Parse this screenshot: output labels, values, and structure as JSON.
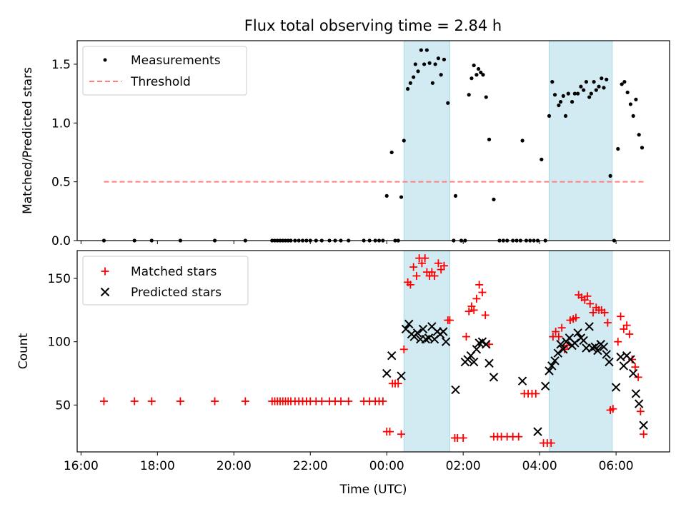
{
  "title": "Flux total observing time = 2.84 h",
  "colors": {
    "measurements": "#000000",
    "threshold": "#ff7f7f",
    "matched": "#ff0000",
    "predicted": "#000000",
    "shade": "#add8e6"
  },
  "chart_data": [
    {
      "type": "scatter",
      "panel": "top",
      "ylabel": "Matched/Predicted stars",
      "xlabel": "",
      "x_unit": "hours relative to 00:00 UTC",
      "xlim": [
        -8.1,
        7.4
      ],
      "ylim": [
        0,
        1.7
      ],
      "yticks": [
        {
          "v": 0,
          "label": "0.0"
        },
        {
          "v": 0.5,
          "label": "0.5"
        },
        {
          "v": 1.0,
          "label": "1.0"
        },
        {
          "v": 1.5,
          "label": "1.5"
        }
      ],
      "legend_position": "top-left",
      "legend": [
        "Measurements",
        "Threshold"
      ],
      "shaded_x": [
        [
          0.45,
          1.65
        ],
        [
          4.25,
          5.9
        ]
      ],
      "threshold": {
        "x": [
          -7.4,
          6.75
        ],
        "y": 0.5
      },
      "measurements": [
        [
          -7.4,
          0
        ],
        [
          -6.6,
          0
        ],
        [
          -6.15,
          0
        ],
        [
          -5.4,
          0
        ],
        [
          -4.5,
          0
        ],
        [
          -3.7,
          0
        ],
        [
          -3.0,
          0
        ],
        [
          -2.93,
          0
        ],
        [
          -2.86,
          0
        ],
        [
          -2.79,
          0
        ],
        [
          -2.72,
          0
        ],
        [
          -2.65,
          0
        ],
        [
          -2.58,
          0
        ],
        [
          -2.51,
          0
        ],
        [
          -2.4,
          0
        ],
        [
          -2.3,
          0
        ],
        [
          -2.2,
          0
        ],
        [
          -2.1,
          0
        ],
        [
          -2.0,
          0
        ],
        [
          -1.85,
          0
        ],
        [
          -1.7,
          0
        ],
        [
          -1.5,
          0
        ],
        [
          -1.35,
          0
        ],
        [
          -1.2,
          0
        ],
        [
          -1.0,
          0
        ],
        [
          -0.6,
          0
        ],
        [
          -0.45,
          0
        ],
        [
          -0.3,
          0
        ],
        [
          -0.2,
          0
        ],
        [
          -0.1,
          0
        ],
        [
          0.0,
          0.38
        ],
        [
          0.13,
          0.75
        ],
        [
          0.22,
          0
        ],
        [
          0.3,
          0
        ],
        [
          0.38,
          0.37
        ],
        [
          0.45,
          0.85
        ],
        [
          0.55,
          1.29
        ],
        [
          0.62,
          1.34
        ],
        [
          0.7,
          1.39
        ],
        [
          0.75,
          1.5
        ],
        [
          0.82,
          1.44
        ],
        [
          0.9,
          1.62
        ],
        [
          0.98,
          1.5
        ],
        [
          1.05,
          1.62
        ],
        [
          1.12,
          1.51
        ],
        [
          1.2,
          1.34
        ],
        [
          1.27,
          1.5
        ],
        [
          1.35,
          1.55
        ],
        [
          1.42,
          1.41
        ],
        [
          1.5,
          1.54
        ],
        [
          1.6,
          1.17
        ],
        [
          1.75,
          0
        ],
        [
          1.8,
          0.38
        ],
        [
          1.95,
          0
        ],
        [
          2.05,
          0
        ],
        [
          2.15,
          1.24
        ],
        [
          2.22,
          1.38
        ],
        [
          2.28,
          1.49
        ],
        [
          2.35,
          1.41
        ],
        [
          2.4,
          1.46
        ],
        [
          2.46,
          1.43
        ],
        [
          2.52,
          1.41
        ],
        [
          2.6,
          1.22
        ],
        [
          2.68,
          0.86
        ],
        [
          2.8,
          0.35
        ],
        [
          2.95,
          0
        ],
        [
          3.05,
          0
        ],
        [
          3.15,
          0
        ],
        [
          3.3,
          0
        ],
        [
          3.4,
          0
        ],
        [
          3.5,
          0
        ],
        [
          3.55,
          0.85
        ],
        [
          3.65,
          0
        ],
        [
          3.75,
          0
        ],
        [
          3.85,
          0
        ],
        [
          3.95,
          0
        ],
        [
          4.05,
          0.69
        ],
        [
          4.15,
          0
        ],
        [
          4.25,
          1.06
        ],
        [
          4.33,
          1.35
        ],
        [
          4.4,
          1.24
        ],
        [
          4.5,
          1.15
        ],
        [
          4.55,
          1.18
        ],
        [
          4.62,
          1.23
        ],
        [
          4.68,
          1.06
        ],
        [
          4.75,
          1.25
        ],
        [
          4.85,
          1.18
        ],
        [
          4.92,
          1.25
        ],
        [
          5.0,
          1.25
        ],
        [
          5.08,
          1.31
        ],
        [
          5.15,
          1.28
        ],
        [
          5.22,
          1.35
        ],
        [
          5.3,
          1.22
        ],
        [
          5.35,
          1.25
        ],
        [
          5.42,
          1.35
        ],
        [
          5.48,
          1.28
        ],
        [
          5.55,
          1.31
        ],
        [
          5.62,
          1.38
        ],
        [
          5.68,
          1.3
        ],
        [
          5.75,
          1.37
        ],
        [
          5.85,
          0.55
        ],
        [
          5.95,
          0
        ],
        [
          6.05,
          0.78
        ],
        [
          6.15,
          1.33
        ],
        [
          6.22,
          1.35
        ],
        [
          6.3,
          1.26
        ],
        [
          6.38,
          1.16
        ],
        [
          6.45,
          1.06
        ],
        [
          6.52,
          1.2
        ],
        [
          6.6,
          0.9
        ],
        [
          6.68,
          0.79
        ]
      ]
    },
    {
      "type": "scatter",
      "panel": "bottom",
      "ylabel": "Count",
      "xlabel": "Time (UTC)",
      "x_unit": "hours relative to 00:00 UTC",
      "xlim": [
        -8.1,
        7.4
      ],
      "ylim": [
        13,
        172
      ],
      "yticks": [
        {
          "v": 50,
          "label": "50"
        },
        {
          "v": 100,
          "label": "100"
        },
        {
          "v": 150,
          "label": "150"
        }
      ],
      "xticks": [
        {
          "v": -8,
          "label": "16:00"
        },
        {
          "v": -6,
          "label": "18:00"
        },
        {
          "v": -4,
          "label": "20:00"
        },
        {
          "v": -2,
          "label": "22:00"
        },
        {
          "v": 0,
          "label": "00:00"
        },
        {
          "v": 2,
          "label": "02:00"
        },
        {
          "v": 4,
          "label": "04:00"
        },
        {
          "v": 6,
          "label": "06:00"
        }
      ],
      "legend_position": "top-left",
      "legend": [
        "Matched stars",
        "Predicted stars"
      ],
      "shaded_x": [
        [
          0.45,
          1.65
        ],
        [
          4.25,
          5.9
        ]
      ],
      "matched": [
        [
          -7.4,
          53
        ],
        [
          -6.6,
          53
        ],
        [
          -6.15,
          53
        ],
        [
          -5.4,
          53
        ],
        [
          -4.5,
          53
        ],
        [
          -3.7,
          53
        ],
        [
          -3.0,
          53
        ],
        [
          -2.93,
          53
        ],
        [
          -2.86,
          53
        ],
        [
          -2.79,
          53
        ],
        [
          -2.72,
          53
        ],
        [
          -2.65,
          53
        ],
        [
          -2.58,
          53
        ],
        [
          -2.51,
          53
        ],
        [
          -2.4,
          53
        ],
        [
          -2.3,
          53
        ],
        [
          -2.2,
          53
        ],
        [
          -2.1,
          53
        ],
        [
          -2.0,
          53
        ],
        [
          -1.85,
          53
        ],
        [
          -1.7,
          53
        ],
        [
          -1.5,
          53
        ],
        [
          -1.35,
          53
        ],
        [
          -1.2,
          53
        ],
        [
          -1.0,
          53
        ],
        [
          -0.6,
          53
        ],
        [
          -0.45,
          53
        ],
        [
          -0.3,
          53
        ],
        [
          -0.2,
          53
        ],
        [
          -0.1,
          53
        ],
        [
          0.0,
          29
        ],
        [
          0.08,
          29
        ],
        [
          0.15,
          67
        ],
        [
          0.22,
          67
        ],
        [
          0.3,
          67
        ],
        [
          0.38,
          27
        ],
        [
          0.45,
          94
        ],
        [
          0.55,
          147
        ],
        [
          0.62,
          145
        ],
        [
          0.7,
          159
        ],
        [
          0.78,
          152
        ],
        [
          0.85,
          166
        ],
        [
          0.92,
          162
        ],
        [
          1.0,
          166
        ],
        [
          1.05,
          155
        ],
        [
          1.12,
          152
        ],
        [
          1.18,
          155
        ],
        [
          1.25,
          152
        ],
        [
          1.35,
          162
        ],
        [
          1.42,
          157
        ],
        [
          1.5,
          160
        ],
        [
          1.6,
          117
        ],
        [
          1.65,
          117
        ],
        [
          1.78,
          24
        ],
        [
          1.85,
          24
        ],
        [
          2.0,
          24
        ],
        [
          2.08,
          104
        ],
        [
          2.15,
          124
        ],
        [
          2.22,
          128
        ],
        [
          2.28,
          125
        ],
        [
          2.35,
          134
        ],
        [
          2.42,
          145
        ],
        [
          2.5,
          139
        ],
        [
          2.58,
          121
        ],
        [
          2.68,
          98
        ],
        [
          2.8,
          25
        ],
        [
          2.9,
          25
        ],
        [
          3.0,
          25
        ],
        [
          3.15,
          25
        ],
        [
          3.3,
          25
        ],
        [
          3.45,
          25
        ],
        [
          3.6,
          59
        ],
        [
          3.7,
          59
        ],
        [
          3.8,
          59
        ],
        [
          3.9,
          59
        ],
        [
          4.1,
          20
        ],
        [
          4.2,
          20
        ],
        [
          4.3,
          20
        ],
        [
          4.35,
          104
        ],
        [
          4.42,
          108
        ],
        [
          4.5,
          104
        ],
        [
          4.58,
          111
        ],
        [
          4.65,
          94
        ],
        [
          4.72,
          97
        ],
        [
          4.8,
          117
        ],
        [
          4.88,
          118
        ],
        [
          4.95,
          119
        ],
        [
          5.02,
          137
        ],
        [
          5.1,
          135
        ],
        [
          5.18,
          133
        ],
        [
          5.25,
          136
        ],
        [
          5.32,
          130
        ],
        [
          5.4,
          123
        ],
        [
          5.48,
          127
        ],
        [
          5.55,
          125
        ],
        [
          5.62,
          125
        ],
        [
          5.7,
          123
        ],
        [
          5.78,
          115
        ],
        [
          5.85,
          46
        ],
        [
          5.92,
          47
        ],
        [
          6.05,
          100
        ],
        [
          6.12,
          120
        ],
        [
          6.2,
          110
        ],
        [
          6.28,
          113
        ],
        [
          6.35,
          106
        ],
        [
          6.42,
          86
        ],
        [
          6.5,
          80
        ],
        [
          6.58,
          72
        ],
        [
          6.64,
          45
        ],
        [
          6.72,
          27
        ]
      ],
      "predicted": [
        [
          0.0,
          75
        ],
        [
          0.13,
          89
        ],
        [
          0.38,
          73
        ],
        [
          0.5,
          110
        ],
        [
          0.58,
          114
        ],
        [
          0.65,
          106
        ],
        [
          0.72,
          104
        ],
        [
          0.8,
          107
        ],
        [
          0.88,
          102
        ],
        [
          0.95,
          110
        ],
        [
          1.02,
          102
        ],
        [
          1.1,
          103
        ],
        [
          1.18,
          112
        ],
        [
          1.25,
          102
        ],
        [
          1.32,
          108
        ],
        [
          1.4,
          106
        ],
        [
          1.48,
          108
        ],
        [
          1.55,
          100
        ],
        [
          1.8,
          62
        ],
        [
          2.05,
          84
        ],
        [
          2.12,
          86
        ],
        [
          2.2,
          89
        ],
        [
          2.28,
          84
        ],
        [
          2.35,
          94
        ],
        [
          2.42,
          99
        ],
        [
          2.5,
          100
        ],
        [
          2.6,
          98
        ],
        [
          2.68,
          83
        ],
        [
          2.8,
          72
        ],
        [
          3.55,
          69
        ],
        [
          3.95,
          29
        ],
        [
          4.15,
          65
        ],
        [
          4.25,
          77
        ],
        [
          4.32,
          81
        ],
        [
          4.4,
          85
        ],
        [
          4.48,
          91
        ],
        [
          4.55,
          98
        ],
        [
          4.62,
          94
        ],
        [
          4.7,
          100
        ],
        [
          4.78,
          103
        ],
        [
          4.85,
          97
        ],
        [
          4.92,
          99
        ],
        [
          5.0,
          107
        ],
        [
          5.08,
          103
        ],
        [
          5.15,
          101
        ],
        [
          5.22,
          95
        ],
        [
          5.3,
          112
        ],
        [
          5.38,
          95
        ],
        [
          5.45,
          96
        ],
        [
          5.52,
          93
        ],
        [
          5.6,
          98
        ],
        [
          5.68,
          96
        ],
        [
          5.75,
          90
        ],
        [
          5.82,
          84
        ],
        [
          6.0,
          64
        ],
        [
          6.12,
          88
        ],
        [
          6.2,
          81
        ],
        [
          6.28,
          89
        ],
        [
          6.38,
          86
        ],
        [
          6.45,
          75
        ],
        [
          6.52,
          59
        ],
        [
          6.6,
          51
        ],
        [
          6.72,
          34
        ]
      ]
    }
  ]
}
